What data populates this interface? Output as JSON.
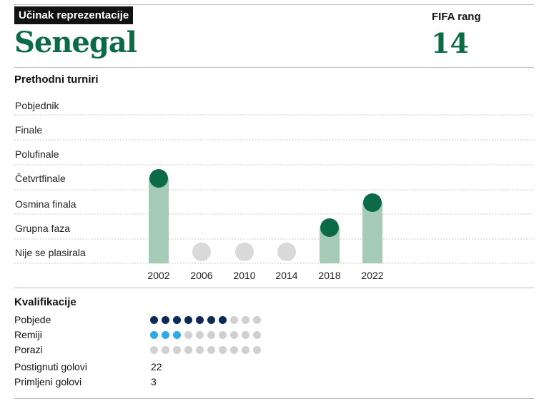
{
  "header": {
    "tag": "Učinak reprezentacije",
    "team": "Senegal",
    "fifa_label": "FIFA rang",
    "fifa_value": "14"
  },
  "sections": {
    "previous": "Prethodni turniri",
    "qualifications": "Kvalifikacije"
  },
  "colors": {
    "accent": "#0b6b47",
    "bar": "#a5cbb6",
    "not_qualified": "#d9d9d9",
    "win": "#0d2a55",
    "draw": "#2ea9e3",
    "empty_dot": "#d0d0d0"
  },
  "chart_data": {
    "type": "bar",
    "y_categories": [
      "Pobjednik",
      "Finale",
      "Polufinale",
      "Četvrtfinale",
      "Osmina finala",
      "Grupna faza",
      "Nije se plasirala"
    ],
    "x": [
      "2002",
      "2006",
      "2010",
      "2014",
      "2018",
      "2022"
    ],
    "values": [
      "Četvrtfinale",
      "Nije se plasirala",
      "Nije se plasirala",
      "Nije se plasirala",
      "Grupna faza",
      "Osmina finala"
    ]
  },
  "qualifications": {
    "rows": [
      {
        "label": "Pobjede",
        "filled": 7,
        "total": 10,
        "color_key": "win"
      },
      {
        "label": "Remiji",
        "filled": 3,
        "total": 10,
        "color_key": "draw"
      },
      {
        "label": "Porazi",
        "filled": 0,
        "total": 10,
        "color_key": "win"
      }
    ],
    "goals_for_label": "Postignuti golovi",
    "goals_for": "22",
    "goals_against_label": "Primljeni golovi",
    "goals_against": "3"
  }
}
